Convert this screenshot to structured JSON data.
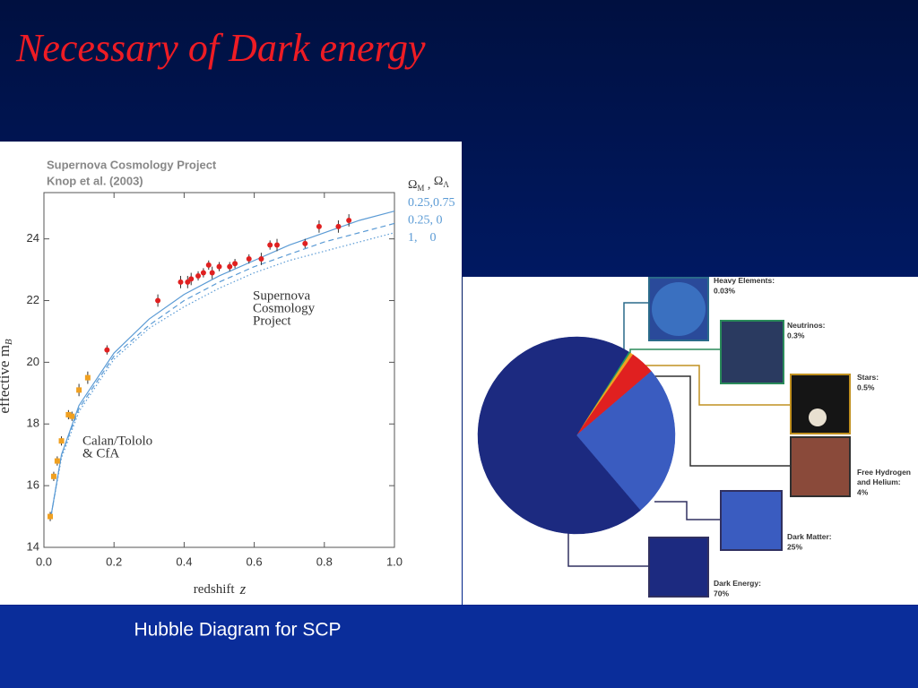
{
  "title": "Necessary of Dark energy",
  "caption": "Hubble Diagram for SCP",
  "chart_data": [
    {
      "type": "scatter",
      "title": "Supernova Cosmology Project",
      "subtitle": "Knop et al. (2003)",
      "annotations": [
        [
          "Supernova",
          "Cosmology",
          "Project"
        ],
        [
          "Calan/Tololo",
          "& CfA"
        ]
      ],
      "xlabel": "redshift",
      "xlabel_var": "z",
      "ylabel": "effective m",
      "ylabel_sub": "B",
      "xlim": [
        0,
        1
      ],
      "ylim": [
        14,
        25.5
      ],
      "xticks": [
        {
          "value": 0,
          "label": "0.0"
        },
        0.2,
        0.4,
        0.6,
        0.8,
        {
          "value": 1,
          "label": "1.0"
        }
      ],
      "yticks": [
        14,
        16,
        18,
        20,
        22,
        24
      ],
      "legend_title": [
        "Ω",
        "M",
        " , ",
        "Ω",
        "Λ"
      ],
      "series": [
        {
          "name": "0.25,0.75",
          "type": "line",
          "color": "#5b9bd5",
          "dash": "solid",
          "x": [
            0.02,
            0.05,
            0.1,
            0.2,
            0.3,
            0.4,
            0.5,
            0.6,
            0.7,
            0.8,
            0.9,
            1.0
          ],
          "values": [
            15.0,
            17.0,
            18.6,
            20.3,
            21.4,
            22.2,
            22.8,
            23.3,
            23.8,
            24.2,
            24.6,
            24.9
          ]
        },
        {
          "name": "0.25, 0",
          "type": "line",
          "color": "#5b9bd5",
          "dash": "dashed",
          "x": [
            0.02,
            0.05,
            0.1,
            0.2,
            0.3,
            0.4,
            0.5,
            0.6,
            0.7,
            0.8,
            0.9,
            1.0
          ],
          "values": [
            15.0,
            17.0,
            18.5,
            20.2,
            21.2,
            22.0,
            22.6,
            23.1,
            23.5,
            23.9,
            24.2,
            24.5
          ]
        },
        {
          "name": "1,    0",
          "type": "line",
          "color": "#5b9bd5",
          "dash": "dotted",
          "x": [
            0.02,
            0.05,
            0.1,
            0.2,
            0.3,
            0.4,
            0.5,
            0.6,
            0.7,
            0.8,
            0.9,
            1.0
          ],
          "values": [
            15.0,
            16.9,
            18.4,
            20.1,
            21.1,
            21.8,
            22.4,
            22.9,
            23.3,
            23.6,
            23.9,
            24.2
          ]
        },
        {
          "type": "points",
          "color": "#f0a020",
          "x": [
            0.018,
            0.028,
            0.038,
            0.05,
            0.07,
            0.08,
            0.1,
            0.125
          ],
          "values": [
            15.0,
            16.3,
            16.8,
            17.45,
            18.3,
            18.25,
            19.1,
            19.5
          ],
          "errors": [
            0.15,
            0.15,
            0.15,
            0.15,
            0.15,
            0.15,
            0.2,
            0.2
          ]
        },
        {
          "type": "points",
          "color": "#e02020",
          "x": [
            0.18,
            0.325,
            0.39,
            0.41,
            0.42,
            0.44,
            0.455,
            0.47,
            0.48,
            0.5,
            0.53,
            0.545,
            0.585,
            0.62,
            0.645,
            0.665,
            0.745,
            0.785,
            0.84,
            0.87
          ],
          "values": [
            20.4,
            22.0,
            22.6,
            22.6,
            22.7,
            22.8,
            22.9,
            23.15,
            22.9,
            23.1,
            23.1,
            23.2,
            23.35,
            23.35,
            23.8,
            23.8,
            23.85,
            24.4,
            24.4,
            24.6
          ],
          "errors": [
            0.15,
            0.2,
            0.2,
            0.2,
            0.2,
            0.15,
            0.15,
            0.15,
            0.2,
            0.15,
            0.15,
            0.15,
            0.15,
            0.2,
            0.15,
            0.2,
            0.15,
            0.2,
            0.2,
            0.2
          ]
        }
      ]
    },
    {
      "type": "pie",
      "categories": [
        "Heavy Elements:",
        "Neutrinos:",
        "Stars:",
        "Free Hydrogen and Helium:",
        "Dark Matter:",
        "Dark Energy:"
      ],
      "values": [
        0.03,
        0.3,
        0.5,
        4,
        25,
        70
      ],
      "value_labels": [
        "0.03%",
        "0.3%",
        "0.5%",
        "4%",
        "25%",
        "70%"
      ],
      "colors": [
        "#3aa0e0",
        "#20a060",
        "#f0a020",
        "#e02020",
        "#3a5cc0",
        "#1c2a80"
      ]
    }
  ]
}
